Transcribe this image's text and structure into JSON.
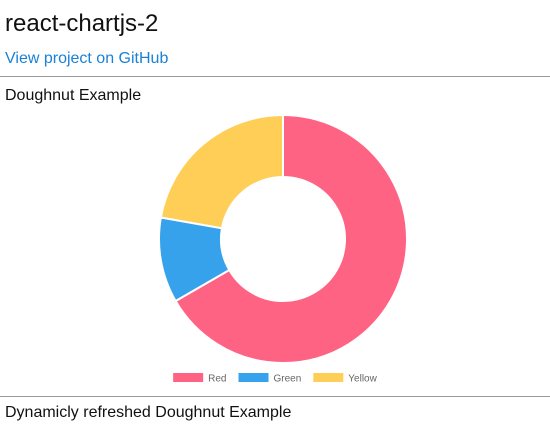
{
  "header": {
    "title": "react-chartjs-2",
    "github_link_label": "View project on GitHub",
    "link_color": "#1a82d6"
  },
  "sections": [
    {
      "title": "Doughnut Example"
    },
    {
      "title": "Dynamicly refreshed Doughnut Example"
    }
  ],
  "chart_data": {
    "type": "pie",
    "subtype": "doughnut",
    "title": "",
    "categories": [
      "Red",
      "Green",
      "Yellow"
    ],
    "values": [
      300,
      50,
      100
    ],
    "colors": [
      "#ff6384",
      "#36a2eb",
      "#ffce56"
    ],
    "legend_position": "bottom"
  }
}
